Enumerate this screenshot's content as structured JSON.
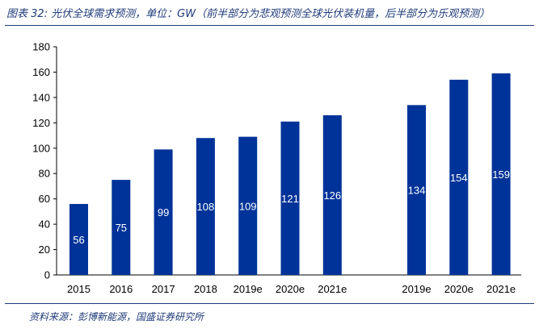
{
  "header": {
    "title": "图表 32:  光伏全球需求预测，单位：GW（前半部分为悲观预测全球光伏装机量，后半部分为乐观预测）"
  },
  "footer": {
    "source": "资料来源：彭博新能源，国盛证券研究所"
  },
  "chart_data": {
    "type": "bar",
    "title": "图表 32:  光伏全球需求预测，单位：GW（前半部分为悲观预测全球光伏装机量，后半部分为乐观预测）",
    "xlabel": "",
    "ylabel": "",
    "ylim": [
      0,
      180
    ],
    "yticks": [
      0,
      20,
      40,
      60,
      80,
      100,
      120,
      140,
      160,
      180
    ],
    "grid": false,
    "legend": "none",
    "bar_color": "#003399",
    "groups": [
      {
        "categories": [
          "2015",
          "2016",
          "2017",
          "2018",
          "2019e",
          "2020e",
          "2021e"
        ],
        "values": [
          56,
          75,
          99,
          108,
          109,
          121,
          126
        ]
      },
      {
        "categories": [
          "2019e",
          "2020e",
          "2021e"
        ],
        "values": [
          134,
          154,
          159
        ]
      }
    ]
  }
}
